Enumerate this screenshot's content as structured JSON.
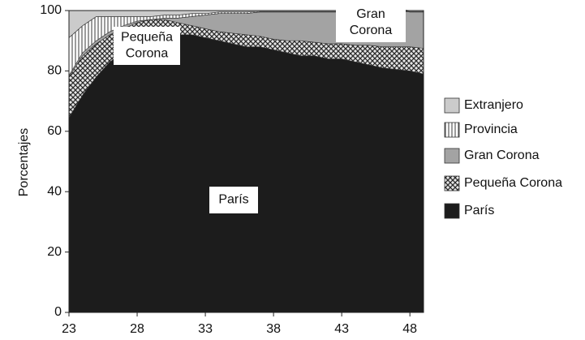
{
  "chart_data": {
    "type": "stacked-area",
    "y_label": "Porcentajes",
    "x": [
      23,
      24,
      25,
      26,
      27,
      28,
      29,
      30,
      31,
      32,
      33,
      34,
      35,
      36,
      37,
      38,
      39,
      40,
      41,
      42,
      43,
      44,
      45,
      46,
      47,
      48,
      49
    ],
    "xlim": [
      23,
      49
    ],
    "xticks": [
      23,
      28,
      33,
      38,
      43,
      48
    ],
    "ylim": [
      0,
      100
    ],
    "yticks": [
      0,
      20,
      40,
      60,
      80,
      100
    ],
    "series": [
      {
        "name": "París",
        "color": "#1c1c1c",
        "hatch": "none",
        "values": [
          64.5,
          72,
          78,
          83,
          86,
          88,
          90,
          91,
          92,
          92,
          91,
          90,
          89,
          88,
          88,
          87,
          86,
          85,
          85,
          84,
          84,
          83,
          82,
          81,
          80.5,
          80,
          79
        ]
      },
      {
        "name": "Pequeña Corona",
        "color": "#8a8a8a",
        "hatch": "cross",
        "values": [
          13.5,
          13,
          11,
          9,
          8,
          8,
          7,
          6,
          4,
          3,
          3,
          3,
          3.5,
          4,
          3.5,
          3.5,
          4,
          5,
          4.5,
          5,
          5,
          5.5,
          6.5,
          7,
          7.5,
          8,
          8.5
        ]
      },
      {
        "name": "Gran Corona",
        "color": "#a3a3a3",
        "hatch": "none",
        "values": [
          0.5,
          1,
          1,
          1,
          1,
          0.5,
          0,
          0.5,
          1.5,
          3,
          4.5,
          6,
          6.5,
          7,
          8,
          9,
          9.5,
          9.5,
          10,
          10.5,
          10.5,
          11,
          11,
          11.5,
          12,
          11.5,
          12
        ]
      },
      {
        "name": "Provincia",
        "color": "#ffffff",
        "hatch": "vertical",
        "values": [
          12.5,
          9,
          8,
          5,
          3,
          1.5,
          1,
          1,
          1,
          1,
          0.5,
          0.5,
          0.5,
          0.5,
          0.2,
          0.2,
          0.2,
          0.2,
          0.2,
          0.2,
          0.2,
          0.2,
          0.2,
          0.2,
          0.2,
          0.2,
          0.2
        ]
      },
      {
        "name": "Extranjero",
        "color": "#cbcbcb",
        "hatch": "none",
        "values": [
          9,
          5,
          2,
          2,
          2,
          2,
          2,
          1.5,
          1.5,
          1,
          1,
          0.5,
          0.5,
          0.5,
          0.3,
          0.3,
          0.3,
          0.3,
          0.3,
          0.3,
          0.3,
          0.3,
          0.3,
          0.3,
          0.3,
          0.3,
          0.3
        ]
      }
    ],
    "annotations": [
      {
        "lines": [
          "Pequeña",
          "Corona"
        ]
      },
      {
        "lines": [
          "Gran",
          "Corona"
        ]
      },
      {
        "lines": [
          "París"
        ]
      }
    ]
  }
}
